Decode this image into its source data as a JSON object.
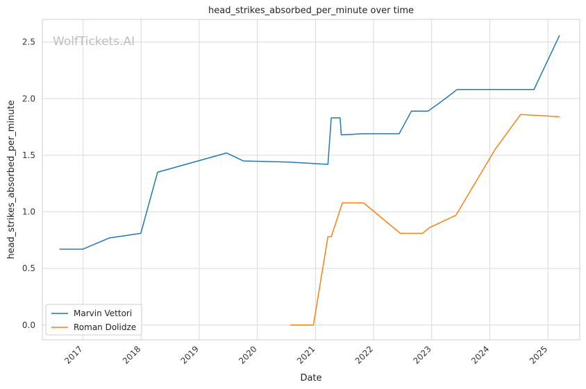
{
  "watermark": "WolfTickets.AI",
  "chart_data": {
    "type": "line",
    "title": "head_strikes_absorbed_per_minute over time",
    "xlabel": "Date",
    "ylabel": "head_strikes_absorbed_per_minute",
    "xlim": [
      "2016-04-20",
      "2025-07-20"
    ],
    "ylim": [
      -0.13,
      2.7
    ],
    "x_ticks": [
      "2017",
      "2018",
      "2019",
      "2020",
      "2021",
      "2022",
      "2023",
      "2024",
      "2025"
    ],
    "y_ticks": [
      "0.0",
      "0.5",
      "1.0",
      "1.5",
      "2.0",
      "2.5"
    ],
    "grid": true,
    "legend_position": "lower-left",
    "colors": {
      "Marvin Vettori": "#1f77b4",
      "Roman Dolidze": "#ff7f0e"
    },
    "series": [
      {
        "name": "Marvin Vettori",
        "color": "#1f77b4",
        "points": [
          [
            "2016-08-06",
            0.67
          ],
          [
            "2016-12-30",
            0.67
          ],
          [
            "2017-06-16",
            0.77
          ],
          [
            "2017-12-30",
            0.81
          ],
          [
            "2018-04-14",
            1.35
          ],
          [
            "2019-06-22",
            1.52
          ],
          [
            "2019-10-05",
            1.45
          ],
          [
            "2020-07-18",
            1.44
          ],
          [
            "2021-03-20",
            1.42
          ],
          [
            "2021-04-10",
            1.83
          ],
          [
            "2021-06-05",
            1.83
          ],
          [
            "2021-06-12",
            1.68
          ],
          [
            "2021-10-23",
            1.69
          ],
          [
            "2022-06-11",
            1.69
          ],
          [
            "2022-08-27",
            1.89
          ],
          [
            "2022-12-10",
            1.89
          ],
          [
            "2023-03-18",
            1.99
          ],
          [
            "2023-06-10",
            2.08
          ],
          [
            "2024-10-05",
            2.08
          ],
          [
            "2025-03-15",
            2.56
          ]
        ]
      },
      {
        "name": "Roman Dolidze",
        "color": "#ff7f0e",
        "points": [
          [
            "2020-07-25",
            0.0
          ],
          [
            "2020-12-19",
            0.0
          ],
          [
            "2021-03-20",
            0.78
          ],
          [
            "2021-04-10",
            0.78
          ],
          [
            "2021-06-19",
            1.08
          ],
          [
            "2021-10-30",
            1.08
          ],
          [
            "2022-06-18",
            0.81
          ],
          [
            "2022-11-05",
            0.81
          ],
          [
            "2022-12-17",
            0.86
          ],
          [
            "2023-03-04",
            0.91
          ],
          [
            "2023-06-03",
            0.97
          ],
          [
            "2024-02-03",
            1.55
          ],
          [
            "2024-07-13",
            1.86
          ],
          [
            "2024-11-16",
            1.85
          ],
          [
            "2025-03-15",
            1.84
          ]
        ]
      }
    ]
  }
}
